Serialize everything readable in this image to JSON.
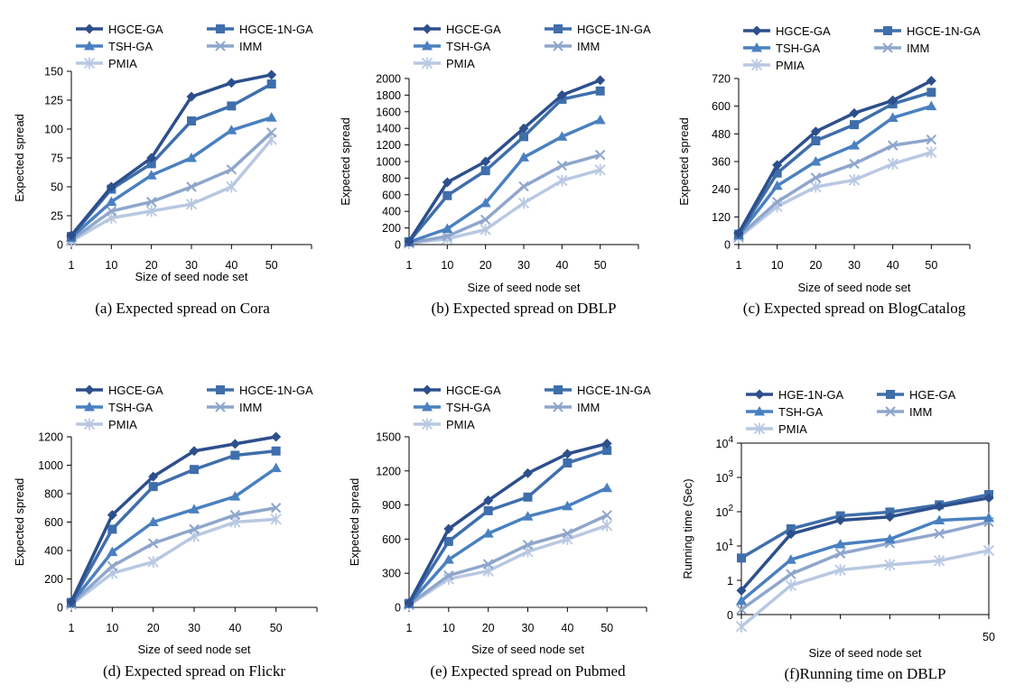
{
  "series_styles": [
    {
      "key": "s1",
      "color": "#2d4f8c",
      "marker": "diamond"
    },
    {
      "key": "s2",
      "color": "#3f6eab",
      "marker": "square"
    },
    {
      "key": "s3",
      "color": "#4a80c0",
      "marker": "triangle"
    },
    {
      "key": "s4",
      "color": "#8fa6cc",
      "marker": "x"
    },
    {
      "key": "s5",
      "color": "#b9c8e2",
      "marker": "star"
    }
  ],
  "chart_data": [
    {
      "type": "line",
      "caption": "(a) Expected spread on Cora",
      "xlabel": "Size of seed node set",
      "ylabel": "Expected spread",
      "categories": [
        "1",
        "10",
        "20",
        "30",
        "40",
        "50"
      ],
      "yticks": [
        "0",
        "25",
        "50",
        "75",
        "100",
        "125",
        "150"
      ],
      "ylim": [
        0,
        150
      ],
      "series": [
        {
          "name": "HGCE-GA",
          "values": [
            8,
            50,
            75,
            128,
            140,
            147
          ]
        },
        {
          "name": "HGCE-1N-GA",
          "values": [
            7,
            48,
            70,
            107,
            120,
            139
          ]
        },
        {
          "name": "TSH-GA",
          "values": [
            6,
            37,
            60,
            75,
            99,
            110
          ]
        },
        {
          "name": "IMM",
          "values": [
            4,
            29,
            37,
            50,
            65,
            97
          ]
        },
        {
          "name": "PMIA",
          "values": [
            3,
            23,
            29,
            35,
            50,
            91
          ]
        }
      ]
    },
    {
      "type": "line",
      "caption": "(b) Expected spread on DBLP",
      "xlabel": "Size of seed node set",
      "ylabel": "Expected spread",
      "categories": [
        "1",
        "10",
        "20",
        "30",
        "40",
        "50"
      ],
      "yticks": [
        "0",
        "200",
        "400",
        "600",
        "800",
        "1000",
        "1200",
        "1400",
        "1600",
        "1800",
        "2000"
      ],
      "ylim": [
        0,
        2000
      ],
      "series": [
        {
          "name": "HGCE-GA",
          "values": [
            40,
            750,
            1000,
            1400,
            1800,
            1980
          ]
        },
        {
          "name": "HGCE-1N-GA",
          "values": [
            35,
            590,
            890,
            1300,
            1750,
            1850
          ]
        },
        {
          "name": "TSH-GA",
          "values": [
            30,
            190,
            500,
            1050,
            1300,
            1500
          ]
        },
        {
          "name": "IMM",
          "values": [
            20,
            100,
            300,
            700,
            950,
            1080
          ]
        },
        {
          "name": "PMIA",
          "values": [
            15,
            70,
            180,
            500,
            770,
            900
          ]
        }
      ]
    },
    {
      "type": "line",
      "caption": "(c) Expected spread on BlogCatalog",
      "xlabel": "Size of seed node set",
      "ylabel": "Expected spread",
      "categories": [
        "1",
        "10",
        "20",
        "30",
        "40",
        "50"
      ],
      "yticks": [
        "0",
        "120",
        "240",
        "360",
        "480",
        "600",
        "720"
      ],
      "ylim": [
        0,
        720
      ],
      "series": [
        {
          "name": "HGCE-GA",
          "values": [
            50,
            345,
            490,
            570,
            625,
            710
          ]
        },
        {
          "name": "HGCE-1N-GA",
          "values": [
            45,
            310,
            450,
            520,
            610,
            660
          ]
        },
        {
          "name": "TSH-GA",
          "values": [
            40,
            255,
            360,
            430,
            550,
            600
          ]
        },
        {
          "name": "IMM",
          "values": [
            35,
            185,
            290,
            350,
            430,
            455
          ]
        },
        {
          "name": "PMIA",
          "values": [
            30,
            165,
            250,
            280,
            350,
            400
          ]
        }
      ]
    },
    {
      "type": "line",
      "caption": "(d) Expected spread on Flickr",
      "xlabel": "Size of seed node set",
      "ylabel": "Expected spread",
      "categories": [
        "1",
        "10",
        "20",
        "30",
        "40",
        "50"
      ],
      "yticks": [
        "0",
        "200",
        "400",
        "600",
        "800",
        "1000",
        "1200"
      ],
      "ylim": [
        0,
        1200
      ],
      "series": [
        {
          "name": "HGCE-GA",
          "values": [
            40,
            650,
            920,
            1100,
            1150,
            1200
          ]
        },
        {
          "name": "HGCE-1N-GA",
          "values": [
            35,
            550,
            850,
            970,
            1070,
            1100
          ]
        },
        {
          "name": "TSH-GA",
          "values": [
            30,
            390,
            600,
            690,
            780,
            980
          ]
        },
        {
          "name": "IMM",
          "values": [
            25,
            290,
            450,
            550,
            650,
            700
          ]
        },
        {
          "name": "PMIA",
          "values": [
            20,
            240,
            320,
            500,
            600,
            620
          ]
        }
      ]
    },
    {
      "type": "line",
      "caption": "(e) Expected spread on Pubmed",
      "xlabel": "Size of seed node set",
      "ylabel": "Expected spread",
      "categories": [
        "1",
        "10",
        "20",
        "30",
        "40",
        "50"
      ],
      "yticks": [
        "0",
        "300",
        "600",
        "900",
        "1200",
        "1500"
      ],
      "ylim": [
        0,
        1500
      ],
      "series": [
        {
          "name": "HGCE-GA",
          "values": [
            40,
            690,
            940,
            1180,
            1350,
            1440
          ]
        },
        {
          "name": "HGCE-1N-GA",
          "values": [
            35,
            580,
            850,
            970,
            1270,
            1380
          ]
        },
        {
          "name": "TSH-GA",
          "values": [
            30,
            420,
            650,
            800,
            890,
            1050
          ]
        },
        {
          "name": "IMM",
          "values": [
            25,
            280,
            380,
            550,
            650,
            810
          ]
        },
        {
          "name": "PMIA",
          "values": [
            20,
            250,
            320,
            490,
            600,
            720
          ]
        }
      ]
    },
    {
      "type": "line",
      "caption": "(f)Running time on DBLP",
      "xlabel": "Size of seed node set",
      "ylabel": "Running time (Sec)",
      "yscale": "log",
      "categories": [
        "",
        "",
        "",
        "",
        "",
        "50"
      ],
      "ytick_labels": [
        {
          "base": "0",
          "exp": ""
        },
        {
          "base": "1",
          "exp": ""
        },
        {
          "base": "10",
          "exp": "1"
        },
        {
          "base": "10",
          "exp": "2"
        },
        {
          "base": "10",
          "exp": "3"
        },
        {
          "base": "10",
          "exp": "4"
        }
      ],
      "ylim": [
        0,
        5
      ],
      "series": [
        {
          "name": "HGE-1N-GA",
          "values": [
            0.7,
            2.35,
            2.75,
            2.85,
            3.15,
            3.4
          ]
        },
        {
          "name": "HGE-GA",
          "values": [
            1.65,
            2.5,
            2.88,
            2.99,
            3.2,
            3.5
          ]
        },
        {
          "name": "TSH-GA",
          "values": [
            0.4,
            1.6,
            2.05,
            2.2,
            2.75,
            2.82
          ]
        },
        {
          "name": "IMM",
          "values": [
            0.15,
            1.18,
            1.78,
            2.08,
            2.36,
            2.7
          ]
        },
        {
          "name": "PMIA",
          "values": [
            -0.35,
            0.85,
            1.3,
            1.45,
            1.57,
            1.87
          ]
        }
      ]
    }
  ]
}
